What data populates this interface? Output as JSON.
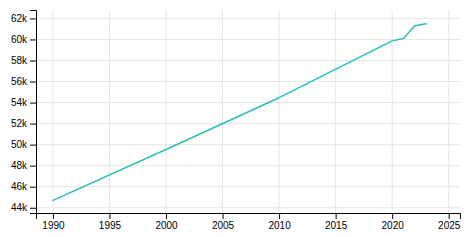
{
  "chart_data": {
    "type": "line",
    "x": [
      1990,
      2000,
      2010,
      2020,
      2021,
      2022,
      2023
    ],
    "values": [
      44700,
      49540,
      54462,
      59864,
      60100,
      61300,
      61500
    ],
    "color": "#2abfb3",
    "xlim": [
      1988.5,
      2026
    ],
    "ylim": [
      43500,
      62800
    ],
    "xticks": [
      1990,
      1995,
      2000,
      2005,
      2010,
      2015,
      2020,
      2025
    ],
    "yticks": [
      {
        "value": 44000,
        "label": "44k"
      },
      {
        "value": 46000,
        "label": "46k"
      },
      {
        "value": 48000,
        "label": "48k"
      },
      {
        "value": 50000,
        "label": "50k"
      },
      {
        "value": 52000,
        "label": "52k"
      },
      {
        "value": 54000,
        "label": "54k"
      },
      {
        "value": 56000,
        "label": "56k"
      },
      {
        "value": 58000,
        "label": "58k"
      },
      {
        "value": 60000,
        "label": "60k"
      },
      {
        "value": 62000,
        "label": "62k"
      }
    ],
    "grid": true
  }
}
